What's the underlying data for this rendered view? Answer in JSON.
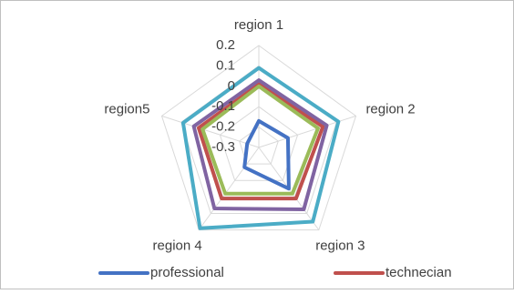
{
  "chart_data": {
    "type": "radar",
    "categories": [
      "region 1",
      "region 2",
      "region 3",
      "region 4",
      "region5"
    ],
    "series": [
      {
        "name": "professional",
        "color": "#4472c4",
        "values": [
          -0.17,
          -0.15,
          -0.05,
          -0.18,
          -0.24
        ]
      },
      {
        "name": "technecian",
        "color": "#c0504d",
        "values": [
          0.01,
          0.03,
          0.01,
          0.01,
          0.01
        ]
      },
      {
        "color": "#9bbb59",
        "values": [
          0,
          0.005,
          -0.02,
          -0.02,
          -0.01
        ]
      },
      {
        "color": "#8064a2",
        "values": [
          0.03,
          0.05,
          0.075,
          0.07,
          0.035
        ]
      },
      {
        "color": "#4bacc6",
        "values": [
          0.09,
          0.11,
          0.15,
          0.19,
          0.09
        ]
      }
    ],
    "ylim": [
      -0.3,
      0.2
    ],
    "yticks": [
      0.2,
      0.1,
      0,
      -0.1,
      -0.2,
      -0.3
    ],
    "grid": true
  }
}
